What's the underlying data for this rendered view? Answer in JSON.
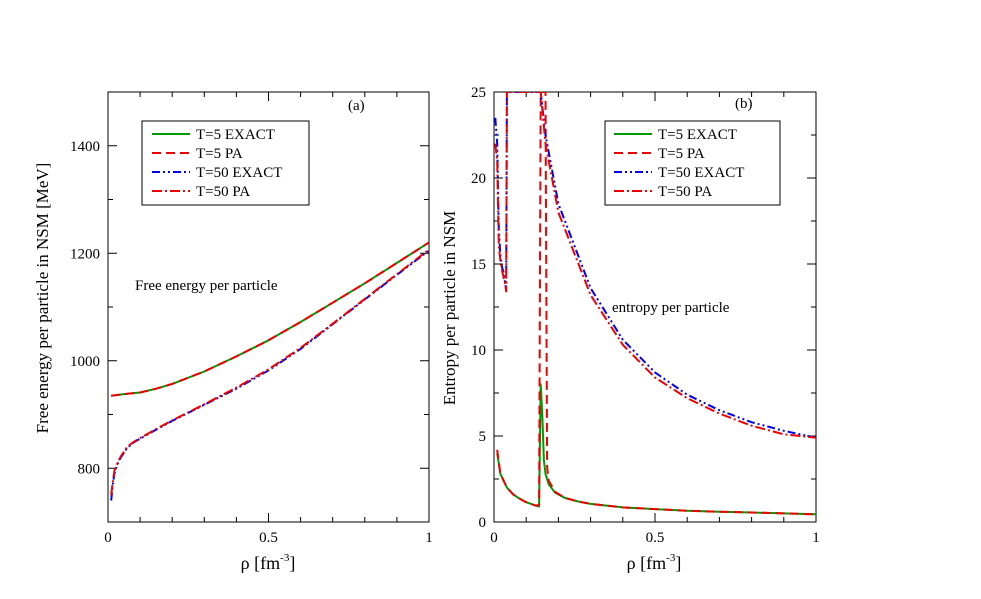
{
  "chart_data": [
    {
      "type": "line",
      "panel_label": "(a)",
      "annotation": "Free energy per particle",
      "xlabel": "ρ [fm",
      "xlabel_sup": "-3",
      "xlabel_end": "]",
      "ylabel": "Free energy per particle in NSM [MeV]",
      "xlim": [
        0,
        1
      ],
      "ylim": [
        700,
        1500
      ],
      "xticks": [
        0,
        0.5,
        1
      ],
      "xtick_labels": [
        "0",
        "0.5",
        "1"
      ],
      "yticks": [
        800,
        1000,
        1200,
        1400
      ],
      "ytick_labels": [
        "800",
        "1000",
        "1200",
        "1400"
      ],
      "legend": "top-left",
      "series": [
        {
          "name": "T=5 EXACT",
          "color": "#009900",
          "dash": "",
          "x": [
            0.01,
            0.05,
            0.1,
            0.15,
            0.2,
            0.3,
            0.4,
            0.5,
            0.6,
            0.7,
            0.8,
            0.9,
            1.0
          ],
          "y": [
            935,
            938,
            941,
            948,
            957,
            980,
            1008,
            1038,
            1072,
            1108,
            1144,
            1182,
            1220
          ]
        },
        {
          "name": "T=5 PA",
          "color": "#ee0000",
          "dash": "9,5",
          "x": [
            0.01,
            0.05,
            0.1,
            0.15,
            0.2,
            0.3,
            0.4,
            0.5,
            0.6,
            0.7,
            0.8,
            0.9,
            1.0
          ],
          "y": [
            935,
            938,
            941,
            948,
            957,
            980,
            1008,
            1038,
            1072,
            1108,
            1144,
            1182,
            1220
          ]
        },
        {
          "name": "T=50 EXACT",
          "color": "#0000ee",
          "dash": "8,3,2,3,2,3",
          "x": [
            0.01,
            0.015,
            0.02,
            0.03,
            0.04,
            0.06,
            0.08,
            0.1,
            0.15,
            0.2,
            0.3,
            0.4,
            0.5,
            0.6,
            0.7,
            0.8,
            0.9,
            1.0
          ],
          "y": [
            740,
            770,
            790,
            808,
            820,
            838,
            848,
            855,
            872,
            888,
            918,
            948,
            982,
            1022,
            1068,
            1114,
            1160,
            1205
          ]
        },
        {
          "name": "T=50 PA",
          "color": "#ee0000",
          "dash": "10,3,2,3",
          "x": [
            0.01,
            0.015,
            0.02,
            0.03,
            0.04,
            0.06,
            0.08,
            0.1,
            0.15,
            0.2,
            0.3,
            0.4,
            0.5,
            0.6,
            0.7,
            0.8,
            0.9,
            1.0
          ],
          "y": [
            750,
            775,
            795,
            810,
            822,
            840,
            849,
            856,
            873,
            889,
            919,
            950,
            984,
            1024,
            1069,
            1115,
            1161,
            1207
          ]
        }
      ]
    },
    {
      "type": "line",
      "panel_label": "(b)",
      "annotation": "entropy per particle",
      "xlabel": "ρ [fm",
      "xlabel_sup": "-3",
      "xlabel_end": "]",
      "ylabel": "Entropy per particle in NSM",
      "xlim": [
        0,
        1
      ],
      "ylim": [
        0,
        25
      ],
      "xticks": [
        0,
        0.5,
        1
      ],
      "xtick_labels": [
        "0",
        "0.5",
        "1"
      ],
      "yticks": [
        0,
        5,
        10,
        15,
        20,
        25
      ],
      "ytick_labels": [
        "0",
        "5",
        "10",
        "15",
        "20",
        "25"
      ],
      "legend": "top-right",
      "series": [
        {
          "name": "T=5 EXACT",
          "color": "#009900",
          "dash": "",
          "x": [
            0.01,
            0.02,
            0.04,
            0.06,
            0.08,
            0.1,
            0.13,
            0.14,
            0.145,
            0.15,
            0.155,
            0.16,
            0.17,
            0.19,
            0.22,
            0.26,
            0.3,
            0.4,
            0.5,
            0.6,
            0.7,
            0.8,
            0.9,
            1.0
          ],
          "y": [
            4.0,
            2.8,
            2.0,
            1.6,
            1.35,
            1.15,
            0.95,
            0.9,
            8.0,
            6.2,
            3.6,
            2.8,
            2.2,
            1.7,
            1.4,
            1.2,
            1.05,
            0.85,
            0.75,
            0.65,
            0.6,
            0.55,
            0.5,
            0.45
          ]
        },
        {
          "name": "T=5 PA",
          "color": "#ee0000",
          "dash": "9,5",
          "x": [
            0.01,
            0.02,
            0.04,
            0.06,
            0.08,
            0.1,
            0.13,
            0.14,
            0.145,
            0.15,
            0.155,
            0.16,
            0.165,
            0.17,
            0.19,
            0.22,
            0.26,
            0.3,
            0.4,
            0.5,
            0.6,
            0.7,
            0.8,
            0.9,
            1.0
          ],
          "y": [
            4.2,
            2.8,
            2.0,
            1.6,
            1.35,
            1.15,
            0.95,
            1.0,
            25,
            25,
            25,
            25,
            3.2,
            2.4,
            1.75,
            1.4,
            1.2,
            1.05,
            0.85,
            0.75,
            0.65,
            0.6,
            0.55,
            0.5,
            0.45
          ]
        },
        {
          "name": "T=50 EXACT",
          "color": "#0000ee",
          "dash": "8,3,2,3,2,3",
          "x": [
            0.004,
            0.01,
            0.015,
            0.02,
            0.025,
            0.03,
            0.035,
            0.038,
            0.04,
            0.042,
            0.045,
            0.145,
            0.16,
            0.2,
            0.3,
            0.4,
            0.5,
            0.6,
            0.7,
            0.8,
            0.9,
            1.0
          ],
          "y": [
            23.5,
            22,
            17,
            15.5,
            14.8,
            14.5,
            13.8,
            13.5,
            25,
            25,
            25,
            25,
            22.5,
            18.5,
            13.6,
            10.6,
            8.7,
            7.4,
            6.5,
            5.8,
            5.3,
            4.9
          ]
        },
        {
          "name": "T=50 PA",
          "color": "#ee0000",
          "dash": "10,3,2,3",
          "x": [
            0.004,
            0.01,
            0.015,
            0.02,
            0.025,
            0.03,
            0.035,
            0.038,
            0.04,
            0.042,
            0.045,
            0.145,
            0.16,
            0.2,
            0.3,
            0.4,
            0.5,
            0.6,
            0.7,
            0.8,
            0.9,
            1.0
          ],
          "y": [
            22,
            21,
            16,
            15.2,
            14.6,
            14.2,
            13.8,
            13.4,
            25,
            25,
            25,
            25,
            22,
            18,
            13.2,
            10.3,
            8.4,
            7.2,
            6.3,
            5.6,
            5.1,
            4.9
          ]
        }
      ]
    }
  ]
}
